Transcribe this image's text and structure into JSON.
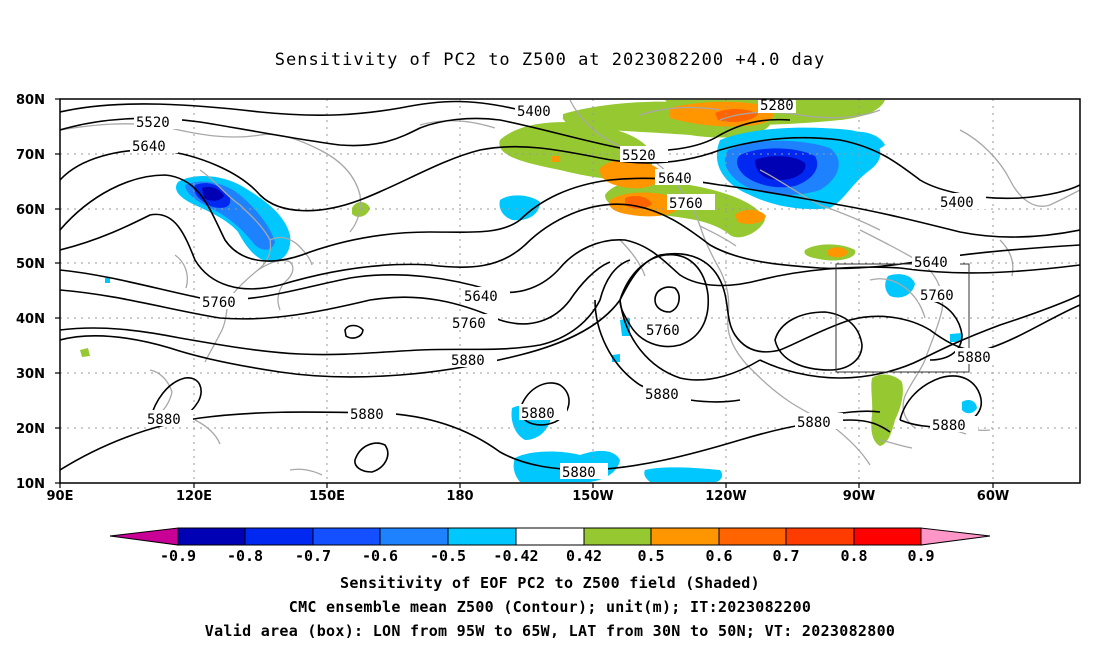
{
  "title": "Sensitivity of PC2 to Z500 at 2023082200 +4.0 day",
  "map": {
    "lat_labels": [
      "10N",
      "20N",
      "30N",
      "40N",
      "50N",
      "60N",
      "70N",
      "80N"
    ],
    "lon_labels": [
      "90E",
      "120E",
      "150E",
      "180",
      "150W",
      "120W",
      "90W",
      "60W"
    ],
    "contour_labels": [
      {
        "id": "c5280",
        "text": "5280"
      },
      {
        "id": "c5400a",
        "text": "5400"
      },
      {
        "id": "c5400b",
        "text": "5400"
      },
      {
        "id": "c5520a",
        "text": "5520"
      },
      {
        "id": "c5520b",
        "text": "5520"
      },
      {
        "id": "c5640a",
        "text": "5640"
      },
      {
        "id": "c5640b",
        "text": "5640"
      },
      {
        "id": "c5640c",
        "text": "5640"
      },
      {
        "id": "c5640d",
        "text": "5640"
      },
      {
        "id": "c5760a",
        "text": "5760"
      },
      {
        "id": "c5760b",
        "text": "5760"
      },
      {
        "id": "c5760c",
        "text": "5760"
      },
      {
        "id": "c5760d",
        "text": "5760"
      },
      {
        "id": "c5760e",
        "text": "5760"
      },
      {
        "id": "c5880a",
        "text": "5880"
      },
      {
        "id": "c5880b",
        "text": "5880"
      },
      {
        "id": "c5880c",
        "text": "5880"
      },
      {
        "id": "c5880d",
        "text": "5880"
      },
      {
        "id": "c5880e",
        "text": "5880"
      },
      {
        "id": "c5880f",
        "text": "5880"
      },
      {
        "id": "c5880g",
        "text": "5880"
      },
      {
        "id": "c5880h",
        "text": "5880"
      },
      {
        "id": "c5880i",
        "text": "5880"
      }
    ],
    "valid_box": {
      "lon": [
        "95W",
        "65W"
      ],
      "lat": [
        "30N",
        "50N"
      ]
    }
  },
  "colorbar": {
    "labels": [
      "-0.9",
      "-0.8",
      "-0.7",
      "-0.6",
      "-0.5",
      "-0.42",
      "0.42",
      "0.5",
      "0.6",
      "0.7",
      "0.8",
      "0.9"
    ],
    "colors": [
      "#0000b4",
      "#0028f0",
      "#1450ff",
      "#1e82ff",
      "#00c8ff",
      "#ffffff",
      "#96c832",
      "#ff9600",
      "#ff6400",
      "#ff3c00",
      "#ff0000"
    ],
    "end_colors": {
      "low": "#c80096",
      "high": "#ff96c8"
    }
  },
  "caption": {
    "line1": "Sensitivity of EOF PC2 to Z500 field (Shaded)",
    "line2": "CMC ensemble mean Z500 (Contour); unit(m); IT:2023082200",
    "line3": "Valid area (box): LON from 95W to 65W, LAT from 30N to 50N; VT: 2023082800"
  }
}
